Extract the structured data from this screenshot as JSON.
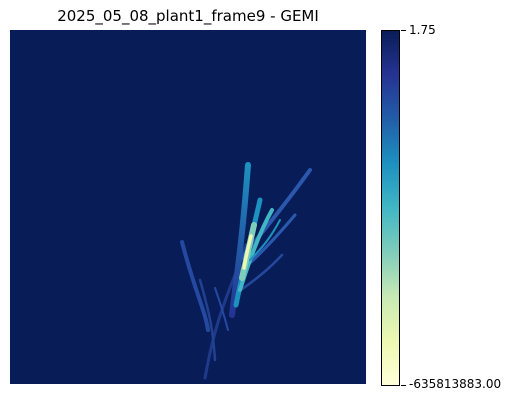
{
  "chart_data": {
    "type": "heatmap",
    "title": "2025_05_08_plant1_frame9 - GEMI",
    "xlabel": "",
    "ylabel": "",
    "axes_visible": false,
    "colormap": "YlGnBu",
    "colorbar": {
      "min": -635813883.0,
      "max": 1.75,
      "tick_labels": [
        "1.75",
        "-635813883.00"
      ]
    },
    "background_value": 1.75,
    "subject": "plant leaves (bright yellow-green streaks near center)"
  },
  "colors": {
    "background": "#081d58",
    "colormap_stops": [
      "#081d58",
      "#253494",
      "#225ea8",
      "#1d91c0",
      "#41b6c4",
      "#7fcdbb",
      "#c7e9b4",
      "#edf8b1",
      "#ffffd9"
    ]
  }
}
